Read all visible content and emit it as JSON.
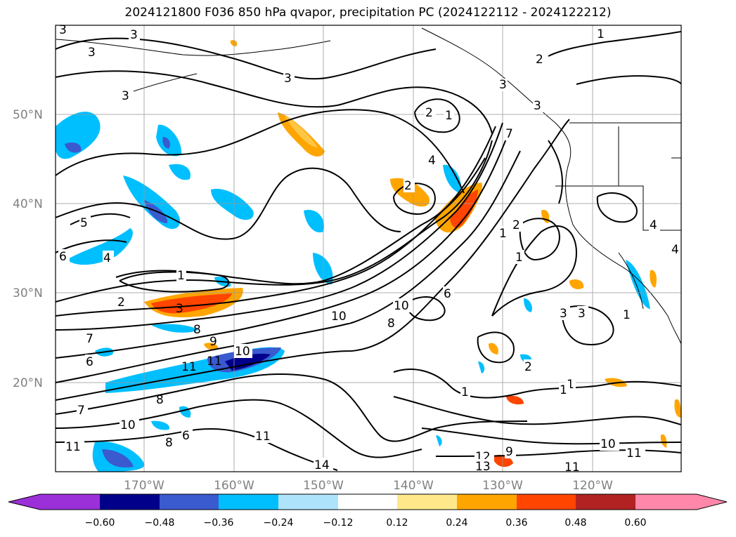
{
  "title": "2024121800 F036 850 hPa qvapor, precipitation PC (2024122112 - 2024122212)",
  "map": {
    "lat_labels": [
      "50°N",
      "40°N",
      "30°N",
      "20°N"
    ],
    "lon_labels": [
      "170°W",
      "160°W",
      "150°W",
      "140°W",
      "130°W",
      "120°W"
    ],
    "contour_labels": [
      "3",
      "3",
      "3",
      "3",
      "3",
      "3",
      "1",
      "2",
      "2",
      "1",
      "3",
      "4",
      "5",
      "6",
      "4",
      "1",
      "2",
      "3",
      "1",
      "2",
      "1",
      "1",
      "3",
      "3",
      "10",
      "10",
      "8",
      "6",
      "7",
      "8",
      "9",
      "10",
      "11",
      "11",
      "6",
      "7",
      "8",
      "10",
      "11",
      "6",
      "8",
      "11",
      "14",
      "12",
      "13",
      "9",
      "10",
      "11",
      "11",
      "1",
      "2",
      "7",
      "4",
      "4",
      "1",
      "1",
      "2"
    ]
  },
  "colorbar": {
    "ticks": [
      "−0.60",
      "−0.48",
      "−0.36",
      "−0.24",
      "−0.12",
      "0.12",
      "0.24",
      "0.36",
      "0.48",
      "0.60"
    ],
    "colors": [
      "#9b30d9",
      "#00008b",
      "#3a5ad0",
      "#00bfff",
      "#aee4fb",
      "#ffffff",
      "#ffe88a",
      "#ffa500",
      "#ff4500",
      "#b22222",
      "#ff88aa"
    ]
  }
}
